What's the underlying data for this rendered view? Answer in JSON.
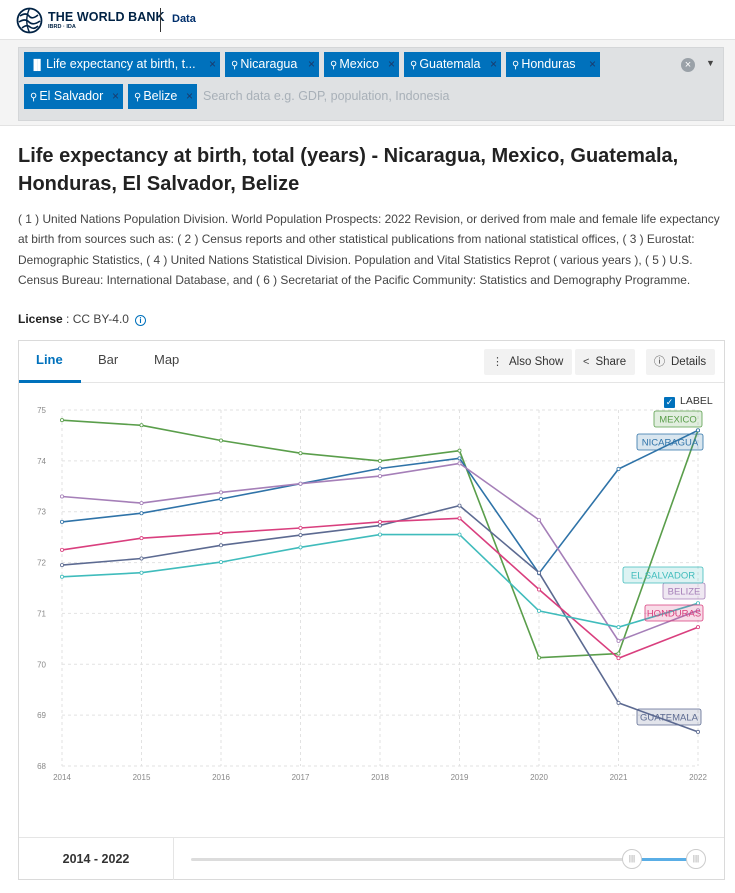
{
  "header": {
    "brand_name": "THE WORLD BANK",
    "brand_sub": "IBRD · IDA",
    "data_link": "Data"
  },
  "search": {
    "chips": [
      {
        "label": "Life expectancy at birth, t...",
        "icon": "bar-chart-icon"
      },
      {
        "label": "Nicaragua",
        "icon": "location-pin-icon"
      },
      {
        "label": "Mexico",
        "icon": "location-pin-icon"
      },
      {
        "label": "Guatemala",
        "icon": "location-pin-icon"
      },
      {
        "label": "Honduras",
        "icon": "location-pin-icon"
      },
      {
        "label": "El Salvador",
        "icon": "location-pin-icon"
      },
      {
        "label": "Belize",
        "icon": "location-pin-icon"
      }
    ],
    "chip_remove": "×",
    "placeholder": "Search data e.g. GDP, population, Indonesia"
  },
  "page": {
    "title": "Life expectancy at birth, total (years) - Nicaragua, Mexico, Guatemala, Honduras, El Salvador, Belize",
    "description": "( 1 ) United Nations Population Division. World Population Prospects: 2022 Revision, or derived from male and female life expectancy at birth from sources such as: ( 2 ) Census reports and other statistical publications from national statistical offices, ( 3 ) Eurostat: Demographic Statistics, ( 4 ) United Nations Statistical Division. Population and Vital Statistics Reprot ( various years ), ( 5 ) U.S. Census Bureau: International Database, and ( 6 ) Secretariat of the Pacific Community: Statistics and Demography Programme.",
    "license_label": "License",
    "license_value": " : CC BY-4.0"
  },
  "panel": {
    "tabs": [
      "Line",
      "Bar",
      "Map"
    ],
    "tools": {
      "also_show": "Also Show",
      "share": "Share",
      "details": "Details"
    },
    "label_toggle": "LABEL",
    "range_start": "2014",
    "range_sep": " - ",
    "range_end": "2022"
  },
  "colors": {
    "accent": "#0071bc",
    "Mexico": "#5a9e4b",
    "Nicaragua": "#2f73a8",
    "Guatemala": "#5c6a91",
    "Honduras": "#d93f7e",
    "El Salvador": "#40bcbc",
    "Belize": "#a57fb8"
  },
  "chart_data": {
    "type": "line",
    "title": "Life expectancy at birth, total (years)",
    "xlabel": "",
    "ylabel": "",
    "x": [
      2014,
      2015,
      2016,
      2017,
      2018,
      2019,
      2020,
      2021,
      2022
    ],
    "ylim": [
      68,
      75
    ],
    "yticks": [
      68,
      69,
      70,
      71,
      72,
      73,
      74,
      75
    ],
    "grid": true,
    "series": [
      {
        "name": "Mexico",
        "label": "MEXICO",
        "values": [
          74.8,
          74.7,
          74.4,
          74.15,
          74.0,
          74.2,
          70.13,
          70.21,
          74.6
        ]
      },
      {
        "name": "Nicaragua",
        "label": "NICARAGUA",
        "values": [
          72.8,
          72.97,
          73.25,
          73.55,
          73.85,
          74.05,
          71.79,
          73.84,
          74.6
        ]
      },
      {
        "name": "Belize",
        "label": "BELIZE",
        "values": [
          73.3,
          73.17,
          73.38,
          73.55,
          73.7,
          73.95,
          72.84,
          70.46,
          71.06
        ]
      },
      {
        "name": "Guatemala",
        "label": "GUATEMALA",
        "values": [
          71.95,
          72.08,
          72.34,
          72.54,
          72.73,
          73.12,
          71.8,
          69.24,
          68.67
        ]
      },
      {
        "name": "Honduras",
        "label": "HONDURAS",
        "values": [
          72.25,
          72.48,
          72.58,
          72.68,
          72.8,
          72.87,
          71.47,
          70.12,
          70.73
        ]
      },
      {
        "name": "El Salvador",
        "label": "EL SALVADOR",
        "values": [
          71.72,
          71.8,
          72.01,
          72.3,
          72.55,
          72.55,
          71.05,
          70.73,
          71.2
        ]
      }
    ]
  }
}
